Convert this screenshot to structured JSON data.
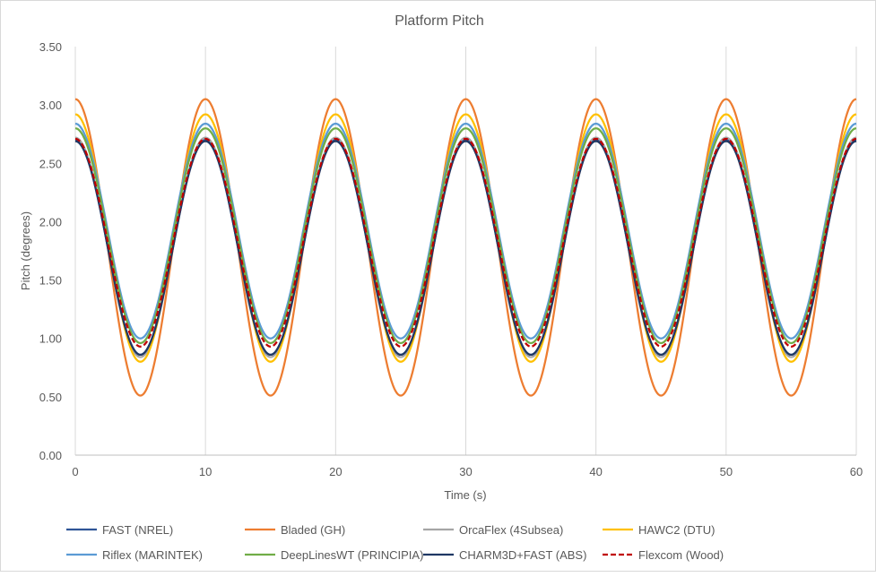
{
  "chart_data": {
    "type": "line",
    "title": "Platform Pitch",
    "xlabel": "Time (s)",
    "ylabel": "Pitch (degrees)",
    "xlim": [
      0,
      60
    ],
    "ylim": [
      0,
      3.5
    ],
    "x_ticks": [
      0,
      10,
      20,
      30,
      40,
      50,
      60
    ],
    "x_tick_labels": [
      "0",
      "10",
      "20",
      "30",
      "40",
      "50",
      "60"
    ],
    "y_ticks": [
      0,
      0.5,
      1.0,
      1.5,
      2.0,
      2.5,
      3.0,
      3.5
    ],
    "y_tick_labels": [
      "0.00",
      "0.50",
      "1.00",
      "1.50",
      "2.00",
      "2.50",
      "3.00",
      "3.50"
    ],
    "grid": "vertical",
    "legend_position": "bottom",
    "x": [
      0,
      2.5,
      5,
      7.5,
      10,
      12.5,
      15,
      17.5,
      20,
      22.5,
      25,
      27.5,
      30,
      32.5,
      35,
      37.5,
      40,
      42.5,
      45,
      47.5,
      50,
      52.5,
      55,
      57.5,
      60
    ],
    "series": [
      {
        "name": "FAST (NREL)",
        "color": "#2f5597",
        "dash": "solid",
        "values": [
          2.7,
          1.78,
          0.86,
          1.78,
          2.7,
          1.78,
          0.86,
          1.78,
          2.7,
          1.78,
          0.86,
          1.78,
          2.7,
          1.78,
          0.86,
          1.78,
          2.7,
          1.78,
          0.86,
          1.78,
          2.7,
          1.78,
          0.86,
          1.78,
          2.7
        ]
      },
      {
        "name": "Bladed (GH)",
        "color": "#ed7d31",
        "dash": "solid",
        "values": [
          3.05,
          1.78,
          0.51,
          1.78,
          3.05,
          1.78,
          0.51,
          1.78,
          3.05,
          1.78,
          0.51,
          1.78,
          3.05,
          1.78,
          0.51,
          1.78,
          3.05,
          1.78,
          0.51,
          1.78,
          3.05,
          1.78,
          0.51,
          1.78,
          3.05
        ]
      },
      {
        "name": "OrcaFlex (4Subsea)",
        "color": "#a5a5a5",
        "dash": "solid",
        "values": [
          2.72,
          1.78,
          0.84,
          1.78,
          2.72,
          1.78,
          0.84,
          1.78,
          2.72,
          1.78,
          0.84,
          1.78,
          2.72,
          1.78,
          0.84,
          1.78,
          2.72,
          1.78,
          0.84,
          1.78,
          2.72,
          1.78,
          0.84,
          1.78,
          2.72
        ]
      },
      {
        "name": "HAWC2 (DTU)",
        "color": "#ffc000",
        "dash": "solid",
        "values": [
          2.92,
          1.86,
          0.8,
          1.86,
          2.92,
          1.86,
          0.8,
          1.86,
          2.92,
          1.86,
          0.8,
          1.86,
          2.92,
          1.86,
          0.8,
          1.86,
          2.92,
          1.86,
          0.8,
          1.86,
          2.92,
          1.86,
          0.8,
          1.86,
          2.92
        ]
      },
      {
        "name": "Riflex (MARINTEK)",
        "color": "#5b9bd5",
        "dash": "solid",
        "values": [
          2.84,
          1.92,
          1.0,
          1.92,
          2.84,
          1.92,
          1.0,
          1.92,
          2.84,
          1.92,
          1.0,
          1.92,
          2.84,
          1.92,
          1.0,
          1.92,
          2.84,
          1.92,
          1.0,
          1.92,
          2.84,
          1.92,
          1.0,
          1.92,
          2.84
        ]
      },
      {
        "name": "DeepLinesWT (PRINCIPIA)",
        "color": "#70ad47",
        "dash": "solid",
        "values": [
          2.8,
          1.88,
          0.96,
          1.88,
          2.8,
          1.88,
          0.96,
          1.88,
          2.8,
          1.88,
          0.96,
          1.88,
          2.8,
          1.88,
          0.96,
          1.88,
          2.8,
          1.88,
          0.96,
          1.88,
          2.8,
          1.88,
          0.96,
          1.88,
          2.8
        ]
      },
      {
        "name": "CHARM3D+FAST (ABS)",
        "color": "#1f3864",
        "dash": "solid",
        "values": [
          2.69,
          1.77,
          0.86,
          1.77,
          2.69,
          1.77,
          0.86,
          1.77,
          2.69,
          1.77,
          0.86,
          1.77,
          2.69,
          1.77,
          0.86,
          1.77,
          2.69,
          1.77,
          0.86,
          1.77,
          2.69,
          1.77,
          0.86,
          1.77,
          2.69
        ]
      },
      {
        "name": "Flexcom (Wood)",
        "color": "#c00000",
        "dash": "dashed",
        "values": [
          2.71,
          1.82,
          0.93,
          1.82,
          2.71,
          1.82,
          0.93,
          1.82,
          2.71,
          1.82,
          0.93,
          1.82,
          2.71,
          1.82,
          0.93,
          1.82,
          2.71,
          1.82,
          0.93,
          1.82,
          2.71,
          1.82,
          0.93,
          1.82,
          2.71
        ]
      }
    ]
  }
}
